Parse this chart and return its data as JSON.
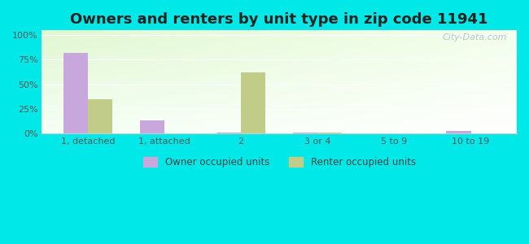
{
  "title": "Owners and renters by unit type in zip code 11941",
  "categories": [
    "1, detached",
    "1, attached",
    "2",
    "3 or 4",
    "5 to 9",
    "10 to 19"
  ],
  "owner_values": [
    82,
    13,
    1,
    1,
    0,
    2
  ],
  "renter_values": [
    35,
    0,
    62,
    1,
    0,
    0
  ],
  "owner_color": "#c8a8dc",
  "renter_color": "#c0cc88",
  "background_color": "#00e8e8",
  "plot_bg_topleft": [
    0.88,
    0.97,
    0.82
  ],
  "plot_bg_topright": [
    0.95,
    1.0,
    0.92
  ],
  "plot_bg_bottomleft": [
    0.96,
    1.0,
    0.96
  ],
  "plot_bg_bottomright": [
    1.0,
    1.0,
    1.0
  ],
  "title_fontsize": 13,
  "ytick_labels": [
    "0%",
    "25%",
    "50%",
    "75%",
    "100%"
  ],
  "ytick_values": [
    0,
    25,
    50,
    75,
    100
  ],
  "ylim": [
    0,
    105
  ],
  "legend_owner": "Owner occupied units",
  "legend_renter": "Renter occupied units",
  "watermark": "City-Data.com",
  "bar_width": 0.32
}
